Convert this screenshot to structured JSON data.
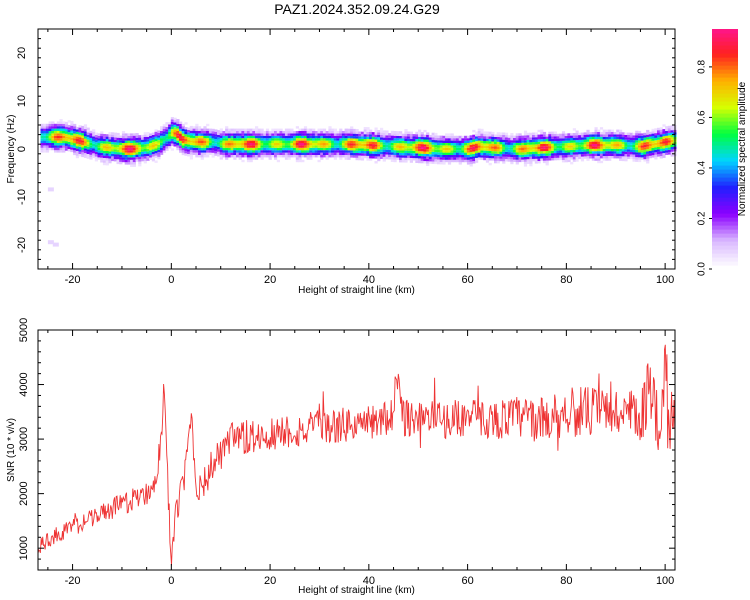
{
  "title": "PAZ1.2024.352.09.24.G29",
  "chart_data": [
    {
      "type": "heatmap",
      "xlabel": "Height of straight line (km)",
      "ylabel": "Frequency (Hz)",
      "xlim": [
        -27,
        102
      ],
      "ylim": [
        -25,
        25
      ],
      "xticks": [
        -20,
        0,
        20,
        40,
        60,
        80,
        100
      ],
      "yticks": [
        -20,
        -10,
        0,
        10,
        20
      ],
      "colorbar": {
        "label": "Normalized spectral amplitude",
        "ticks": [
          "0.0",
          "0.2",
          "0.4",
          "0.6",
          "0.8"
        ],
        "range": [
          0,
          0.95
        ],
        "colors": [
          "#ffffff",
          "#d9b8ff",
          "#8c00ff",
          "#2020ff",
          "#00d5ff",
          "#00ff40",
          "#d6ff00",
          "#ffb000",
          "#ff2020",
          "#ff1493"
        ]
      },
      "ridge": {
        "x": [
          -25,
          -22,
          -20,
          -18,
          -15,
          -12,
          -10,
          -8,
          -5,
          -3,
          -1,
          0,
          1,
          2,
          4,
          6,
          8,
          10,
          15,
          20,
          25,
          30,
          35,
          40,
          45,
          50,
          55,
          60,
          62,
          65,
          70,
          75,
          80,
          85,
          90,
          95,
          100,
          102
        ],
        "y": [
          2.5,
          2.5,
          2.0,
          1.5,
          0.5,
          0.2,
          0.0,
          0.0,
          0.3,
          1.0,
          2.5,
          3.5,
          3.0,
          2.0,
          1.5,
          1.5,
          1.5,
          1.0,
          1.0,
          1.0,
          1.0,
          1.0,
          1.0,
          0.8,
          0.5,
          0.3,
          0.0,
          0.0,
          0.5,
          0.3,
          0.0,
          0.3,
          0.5,
          0.8,
          0.8,
          0.5,
          1.5,
          1.8
        ]
      }
    },
    {
      "type": "line",
      "xlabel": "Height of straight line (km)",
      "ylabel": "SNR (10 * v/v)",
      "xlim": [
        -27,
        102
      ],
      "ylim": [
        600,
        5000
      ],
      "xticks": [
        -20,
        0,
        20,
        40,
        60,
        80,
        100
      ],
      "yticks": [
        1000,
        2000,
        3000,
        4000,
        5000
      ],
      "color": "#ee3333",
      "series": [
        {
          "x": [
            -27,
            -25,
            -22,
            -20,
            -18,
            -15,
            -12,
            -10,
            -8,
            -6,
            -4,
            -3,
            -2,
            -1.5,
            -1,
            -0.5,
            0,
            0.5,
            1,
            2,
            3,
            4,
            4.5,
            5,
            6,
            7,
            8,
            10,
            12,
            14,
            16,
            18,
            20,
            23,
            26,
            30,
            35,
            40,
            45,
            46,
            47,
            50,
            55,
            60,
            65,
            70,
            75,
            80,
            85,
            90,
            93,
            95,
            97,
            99,
            100,
            101,
            102
          ],
          "y": [
            1000,
            1150,
            1300,
            1380,
            1470,
            1600,
            1720,
            1800,
            1880,
            1950,
            2100,
            2400,
            3000,
            3900,
            2800,
            1700,
            800,
            1200,
            1700,
            2000,
            2500,
            3500,
            2900,
            2100,
            2200,
            2200,
            2500,
            2700,
            2950,
            3000,
            3000,
            3050,
            3100,
            3150,
            3150,
            3200,
            3250,
            3300,
            3400,
            4300,
            3400,
            3400,
            3350,
            3400,
            3350,
            3400,
            3350,
            3500,
            3500,
            3500,
            3400,
            3300,
            4000,
            3200,
            4500,
            3300,
            3500
          ],
          "noise": [
            150,
            150,
            160,
            170,
            170,
            180,
            190,
            200,
            210,
            220,
            250,
            250,
            250,
            250,
            250,
            250,
            250,
            250,
            250,
            300,
            320,
            350,
            320,
            300,
            300,
            300,
            300,
            330,
            350,
            350,
            350,
            350,
            330,
            330,
            330,
            330,
            330,
            330,
            350,
            350,
            350,
            350,
            350,
            350,
            350,
            400,
            420,
            450,
            480,
            500,
            520,
            550,
            600,
            600,
            600,
            600,
            600
          ]
        }
      ]
    }
  ]
}
